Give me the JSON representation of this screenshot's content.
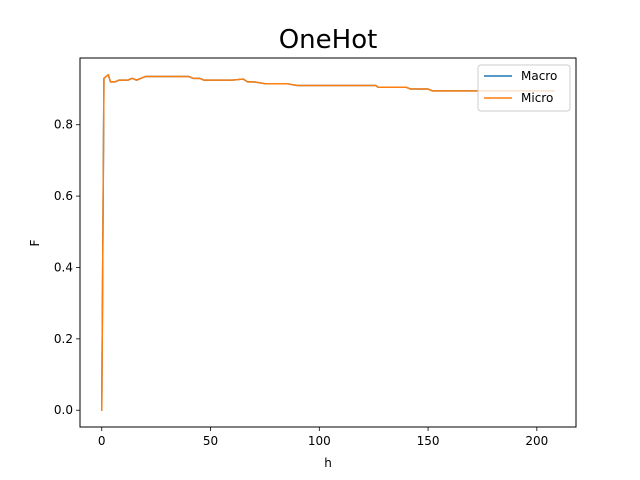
{
  "chart_data": {
    "type": "line",
    "title": "OneHot",
    "xlabel": "h",
    "ylabel": "F",
    "xlim": [
      -10,
      218
    ],
    "ylim": [
      -0.047,
      0.987
    ],
    "xticks": [
      0,
      50,
      100,
      150,
      200
    ],
    "yticks": [
      0.0,
      0.2,
      0.4,
      0.6,
      0.8
    ],
    "grid": false,
    "legend_position": "top-right",
    "series": [
      {
        "name": "Macro",
        "color": "#1f77b4",
        "x": [
          0,
          1,
          2,
          3,
          4,
          6,
          8,
          10,
          12,
          14,
          16,
          18,
          20,
          25,
          30,
          35,
          40,
          42,
          45,
          47,
          50,
          55,
          60,
          65,
          67,
          70,
          75,
          80,
          85,
          90,
          100,
          110,
          120,
          126,
          127,
          130,
          140,
          142,
          150,
          152,
          155,
          160,
          170,
          180,
          190,
          200,
          205,
          208
        ],
        "y": [
          0.0,
          0.93,
          0.935,
          0.94,
          0.92,
          0.92,
          0.925,
          0.925,
          0.925,
          0.93,
          0.925,
          0.93,
          0.935,
          0.935,
          0.935,
          0.935,
          0.935,
          0.93,
          0.93,
          0.925,
          0.925,
          0.925,
          0.925,
          0.928,
          0.92,
          0.92,
          0.915,
          0.915,
          0.915,
          0.91,
          0.91,
          0.91,
          0.91,
          0.91,
          0.905,
          0.905,
          0.905,
          0.9,
          0.9,
          0.895,
          0.895,
          0.895,
          0.895,
          0.895,
          0.895,
          0.895,
          0.895,
          0.895
        ]
      },
      {
        "name": "Micro",
        "color": "#ff7f0e",
        "x": [
          0,
          1,
          2,
          3,
          4,
          6,
          8,
          10,
          12,
          14,
          16,
          18,
          20,
          25,
          30,
          35,
          40,
          42,
          45,
          47,
          50,
          55,
          60,
          65,
          67,
          70,
          75,
          80,
          85,
          90,
          100,
          110,
          120,
          126,
          127,
          130,
          140,
          142,
          150,
          152,
          155,
          160,
          170,
          180,
          190,
          200,
          205,
          208
        ],
        "y": [
          0.0,
          0.93,
          0.935,
          0.94,
          0.92,
          0.92,
          0.925,
          0.925,
          0.925,
          0.93,
          0.925,
          0.93,
          0.935,
          0.935,
          0.935,
          0.935,
          0.935,
          0.93,
          0.93,
          0.925,
          0.925,
          0.925,
          0.925,
          0.928,
          0.92,
          0.92,
          0.915,
          0.915,
          0.915,
          0.91,
          0.91,
          0.91,
          0.91,
          0.91,
          0.905,
          0.905,
          0.905,
          0.9,
          0.9,
          0.895,
          0.895,
          0.895,
          0.895,
          0.895,
          0.895,
          0.895,
          0.895,
          0.895
        ]
      }
    ]
  }
}
